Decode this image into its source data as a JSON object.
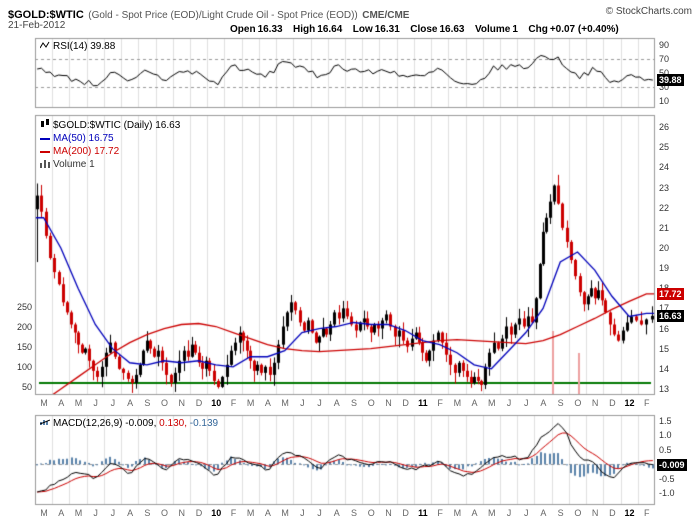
{
  "header": {
    "symbol": "$GOLD:$WTIC",
    "description": "(Gold - Spot Price (EOD)/Light Crude Oil - Spot Price (EOD))",
    "exchange": "CME/CME",
    "copyright": "© StockCharts.com",
    "date": "21-Feb-2012",
    "quote": {
      "open_label": "Open",
      "open": "16.33",
      "high_label": "High",
      "high": "16.64",
      "low_label": "Low",
      "low": "16.31",
      "close_label": "Close",
      "close": "16.63",
      "volume_label": "Volume",
      "volume": "1",
      "chg_label": "Chg",
      "chg": "+0.07 (+0.40%)"
    }
  },
  "rsi_panel": {
    "legend": "RSI(14) 39.88",
    "value_label": "39.88"
  },
  "main_panel": {
    "legend_main": "$GOLD:$WTIC (Daily) 16.63",
    "legend_ma50": "MA(50) 16.75",
    "legend_ma200": "MA(200) 17.72",
    "legend_volume": "Volume 1",
    "ma200_label": "17.72",
    "close_label": "16.63"
  },
  "macd_panel": {
    "legend_name": "MACD(12,26,9)",
    "legend_macd": "-0.009,",
    "legend_signal": "0.130,",
    "legend_hist": "-0.139",
    "value_label": "-0.009"
  },
  "x_axis": {
    "labels": [
      "M",
      "A",
      "M",
      "J",
      "J",
      "A",
      "S",
      "O",
      "N",
      "D",
      "10",
      "F",
      "M",
      "A",
      "M",
      "J",
      "J",
      "A",
      "S",
      "O",
      "N",
      "D",
      "11",
      "F",
      "M",
      "A",
      "M",
      "J",
      "J",
      "A",
      "S",
      "O",
      "N",
      "D",
      "12",
      "F"
    ],
    "year_labels": [
      "10",
      "11",
      "12"
    ]
  },
  "colors": {
    "candle_up": "#000000",
    "candle_down": "#cc0000",
    "ma50": "#0000bb",
    "ma200": "#cc0000",
    "rsi_line": "#000000",
    "macd_line": "#000000",
    "signal_line": "#cc0000",
    "histogram": "#5a82aa",
    "support_line": "#007700",
    "volume_spike": "#eda0a0",
    "grid": "#e0e0e0",
    "panel_border": "#999999",
    "dashed": "#999999"
  },
  "chart_data": [
    {
      "type": "line",
      "name": "RSI(14)",
      "ylim": [
        0,
        100
      ],
      "yticks": [
        90,
        70,
        50,
        30,
        10
      ],
      "overbought": 70,
      "oversold": 30,
      "monthly_values": [
        55,
        45,
        40,
        33,
        50,
        35,
        55,
        40,
        52,
        50,
        33,
        62,
        50,
        45,
        70,
        55,
        45,
        60,
        55,
        50,
        55,
        45,
        44,
        56,
        34,
        30,
        55,
        60,
        58,
        76,
        68,
        45,
        55,
        35,
        46,
        39.88
      ],
      "last_value": 39.88
    },
    {
      "type": "candlestick",
      "name": "$GOLD:$WTIC (Daily)",
      "ylim": [
        12.7,
        26.6
      ],
      "yticks": [
        26,
        25,
        24,
        23,
        22,
        21,
        20,
        19,
        18,
        17,
        16,
        15,
        14,
        13
      ],
      "weekly_closes_by_month": [
        [
          22.6,
          21.8,
          20.6,
          19.5
        ],
        [
          18.8,
          18.2,
          17.3,
          16.8
        ],
        [
          16.2,
          15.8,
          15.2,
          14.8,
          15.0
        ],
        [
          14.4,
          13.9,
          13.6,
          14.1
        ],
        [
          14.8,
          15.3,
          14.6,
          14.0
        ],
        [
          13.8,
          13.5,
          13.3,
          13.7
        ],
        [
          14.2,
          14.9,
          15.4,
          15.0,
          14.6
        ],
        [
          14.9,
          14.3,
          13.7,
          13.3
        ],
        [
          13.8,
          14.4,
          14.9,
          14.6
        ],
        [
          15.2,
          14.8,
          14.3,
          14.0,
          14.4
        ],
        [
          13.9,
          13.4,
          13.1,
          13.6
        ],
        [
          14.2,
          14.9,
          15.3,
          15.8
        ],
        [
          15.4,
          14.9,
          14.4,
          13.9,
          14.2
        ],
        [
          13.8,
          14.1,
          13.7,
          14.3
        ],
        [
          15.2,
          16.1,
          16.8,
          17.3
        ],
        [
          16.9,
          16.3,
          15.9,
          16.4
        ],
        [
          15.8,
          15.3,
          15.6,
          16.0,
          15.7
        ],
        [
          16.2,
          16.8,
          16.5,
          17.0
        ],
        [
          16.6,
          16.2,
          15.9,
          16.3
        ],
        [
          16.5,
          16.1,
          15.8,
          16.2,
          16.0
        ],
        [
          16.4,
          16.7,
          16.1,
          15.6
        ],
        [
          15.9,
          15.4,
          15.1,
          15.5
        ],
        [
          15.8,
          15.3,
          14.8,
          14.4,
          14.9
        ],
        [
          15.4,
          15.8,
          15.3,
          14.7
        ],
        [
          14.2,
          13.8,
          14.3,
          13.9
        ],
        [
          13.6,
          13.3,
          13.6,
          13.4,
          13.2
        ],
        [
          14.1,
          14.8,
          15.3,
          15.0
        ],
        [
          15.5,
          16.1,
          15.7,
          16.2
        ],
        [
          16.5,
          16.1,
          16.6,
          16.3
        ],
        [
          17.5,
          19.2,
          20.8,
          21.5,
          22.3
        ],
        [
          23.1,
          22.2,
          21.0,
          20.3
        ],
        [
          19.4,
          18.6,
          17.8,
          17.2
        ],
        [
          17.6,
          18.0,
          17.5,
          17.9,
          17.4
        ],
        [
          16.8,
          16.2,
          15.7,
          15.4
        ],
        [
          15.9,
          16.3,
          16.6,
          16.4
        ],
        [
          16.2,
          16.45,
          16.63
        ]
      ],
      "ma50_monthly": [
        21.5,
        20.0,
        18.0,
        16.2,
        15.0,
        14.3,
        14.2,
        14.4,
        14.3,
        14.4,
        14.2,
        14.1,
        14.6,
        14.6,
        14.9,
        15.8,
        16.0,
        16.1,
        16.3,
        16.2,
        16.2,
        15.9,
        15.4,
        15.2,
        14.8,
        14.2,
        14.0,
        14.9,
        15.8,
        17.0,
        19.3,
        19.8,
        18.9,
        17.6,
        16.6,
        16.75
      ],
      "ma200_monthly": [
        12.4,
        13.0,
        13.6,
        14.2,
        14.8,
        15.3,
        15.7,
        16.0,
        16.2,
        16.25,
        16.1,
        15.8,
        15.5,
        15.2,
        15.0,
        14.9,
        14.85,
        14.9,
        14.95,
        15.0,
        15.1,
        15.2,
        15.3,
        15.4,
        15.45,
        15.4,
        15.35,
        15.3,
        15.25,
        15.4,
        15.7,
        16.1,
        16.5,
        16.95,
        17.35,
        17.72
      ],
      "last_close": 16.63,
      "ma50_last": 16.75,
      "ma200_last": 17.72,
      "support_level": 13.3,
      "volume_ticks": [
        250,
        200,
        150,
        100,
        50
      ],
      "volume_spikes": [
        {
          "month_pos": 30.0,
          "value": 190
        },
        {
          "month_pos": 31.5,
          "value": 135
        }
      ]
    },
    {
      "type": "bar+line",
      "name": "MACD(12,26,9)",
      "ylim": [
        -1.4,
        1.7
      ],
      "yticks": [
        1.5,
        1.0,
        0.5,
        0.0,
        -0.5,
        -1.0
      ],
      "zero_line": 0,
      "macd_monthly": [
        -0.9,
        -0.5,
        -0.3,
        -0.45,
        0.1,
        -0.3,
        0.3,
        -0.25,
        0.2,
        0.0,
        -0.4,
        0.3,
        0.05,
        -0.2,
        0.5,
        0.25,
        -0.2,
        0.3,
        0.1,
        0.0,
        0.1,
        -0.2,
        -0.1,
        0.1,
        -0.4,
        -0.3,
        0.2,
        0.3,
        0.15,
        1.0,
        1.45,
        0.3,
        0.0,
        -0.5,
        0.1,
        -0.009
      ],
      "last_macd": -0.009,
      "last_signal": 0.13,
      "last_hist": -0.139
    }
  ]
}
